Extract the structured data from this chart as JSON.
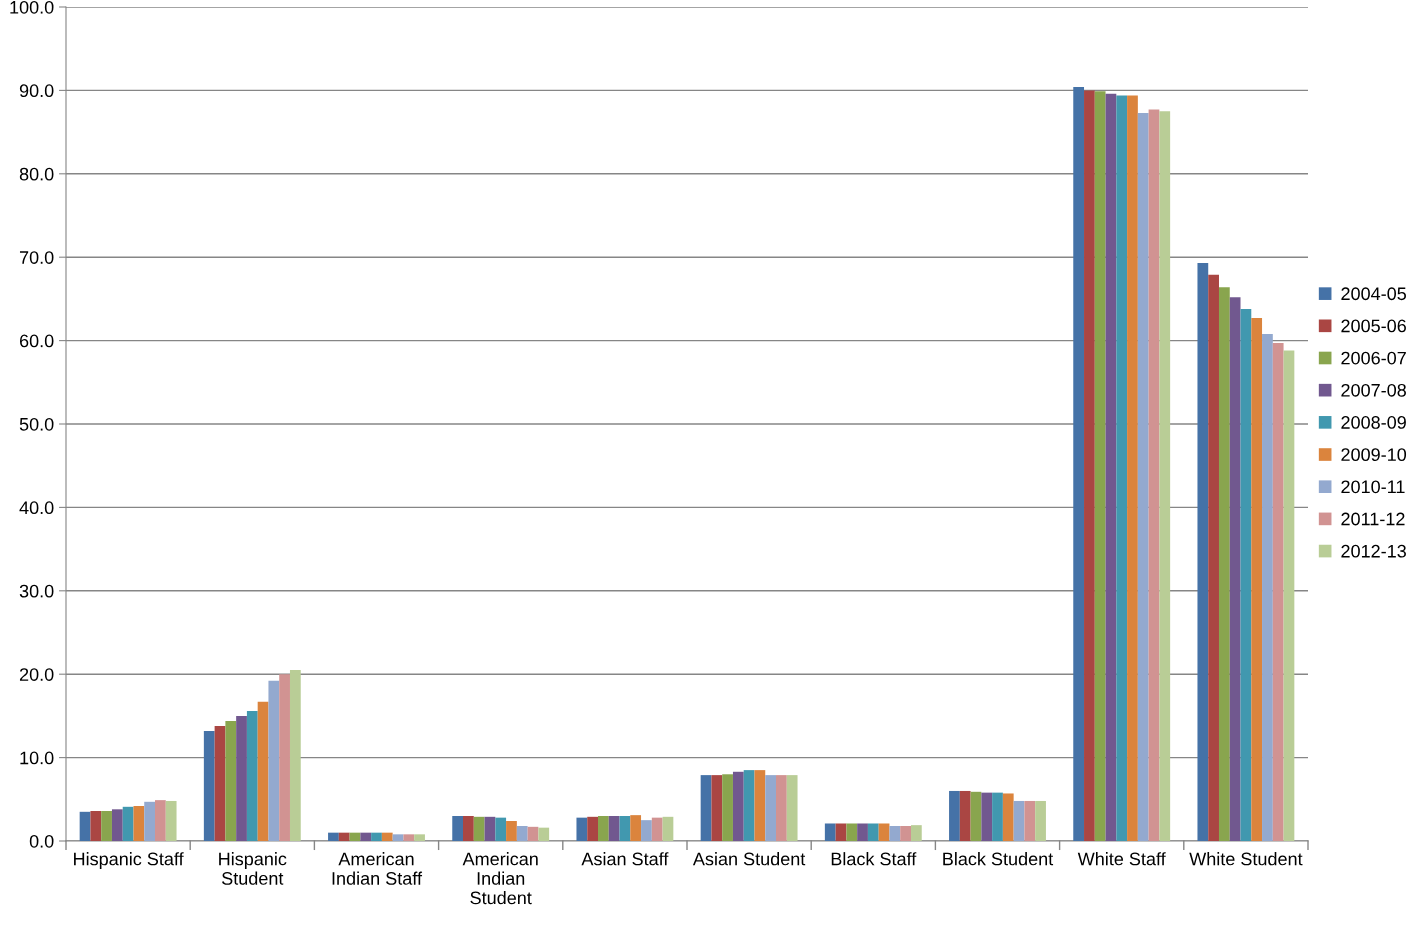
{
  "chart_data": {
    "type": "bar",
    "categories": [
      "Hispanic Staff",
      "Hispanic\nStudent",
      "American\nIndian Staff",
      "American\nIndian\nStudent",
      "Asian Staff",
      "Asian Student",
      "Black Staff",
      "Black Student",
      "White Staff",
      "White Student"
    ],
    "series": [
      {
        "name": "2004-05",
        "color": "#4572a7",
        "values": [
          3.5,
          13.2,
          1.0,
          3.0,
          2.8,
          7.9,
          2.1,
          6.0,
          90.4,
          69.3
        ]
      },
      {
        "name": "2005-06",
        "color": "#aa4643",
        "values": [
          3.6,
          13.8,
          1.0,
          3.0,
          2.9,
          7.9,
          2.1,
          6.0,
          90.0,
          67.9
        ]
      },
      {
        "name": "2006-07",
        "color": "#89a54e",
        "values": [
          3.6,
          14.4,
          1.0,
          2.9,
          3.0,
          8.0,
          2.1,
          5.9,
          89.9,
          66.4
        ]
      },
      {
        "name": "2007-08",
        "color": "#71588f",
        "values": [
          3.8,
          15.0,
          1.0,
          2.9,
          3.0,
          8.3,
          2.1,
          5.8,
          89.6,
          65.2
        ]
      },
      {
        "name": "2008-09",
        "color": "#4198af",
        "values": [
          4.1,
          15.6,
          1.0,
          2.8,
          3.0,
          8.5,
          2.1,
          5.8,
          89.4,
          63.8
        ]
      },
      {
        "name": "2009-10",
        "color": "#db843d",
        "values": [
          4.2,
          16.7,
          1.0,
          2.4,
          3.1,
          8.5,
          2.1,
          5.7,
          89.4,
          62.7
        ]
      },
      {
        "name": "2010-11",
        "color": "#93a9cf",
        "values": [
          4.7,
          19.2,
          0.8,
          1.8,
          2.5,
          7.9,
          1.8,
          4.8,
          87.3,
          60.8
        ]
      },
      {
        "name": "2011-12",
        "color": "#d19392",
        "values": [
          4.9,
          20.0,
          0.8,
          1.7,
          2.8,
          7.9,
          1.8,
          4.8,
          87.7,
          59.7
        ]
      },
      {
        "name": "2012-13",
        "color": "#b9cd96",
        "values": [
          4.8,
          20.5,
          0.8,
          1.6,
          2.9,
          7.9,
          1.9,
          4.8,
          87.5,
          58.8
        ]
      }
    ],
    "ylim": [
      0,
      100
    ],
    "yticks": [
      {
        "value": 0,
        "label": "0.0"
      },
      {
        "value": 10,
        "label": "10.0"
      },
      {
        "value": 20,
        "label": "20.0"
      },
      {
        "value": 30,
        "label": "30.0"
      },
      {
        "value": 40,
        "label": "40.0"
      },
      {
        "value": 50,
        "label": "50.0"
      },
      {
        "value": 60,
        "label": "60.0"
      },
      {
        "value": 70,
        "label": "70.0"
      },
      {
        "value": 80,
        "label": "80.0"
      },
      {
        "value": 90,
        "label": "90.0"
      },
      {
        "value": 100,
        "label": "100.0"
      }
    ],
    "grid": "y",
    "legend": "right"
  }
}
